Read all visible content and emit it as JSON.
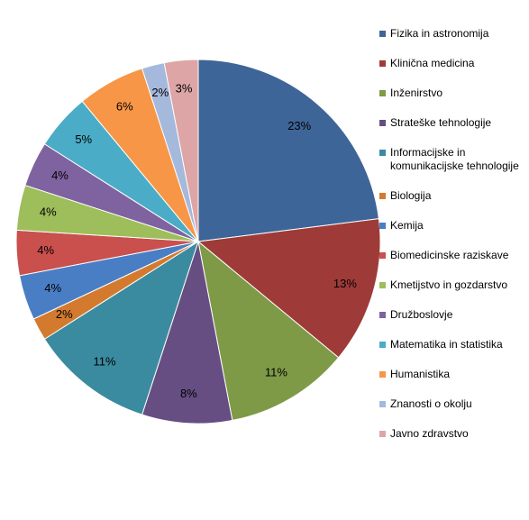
{
  "chart_data": {
    "type": "pie",
    "categories": [
      "Fizika in astronomija",
      "Klinična medicina",
      "Inženirstvo",
      "Strateške tehnologije",
      "Informacijske in komunikacijske tehnologije",
      "Biologija",
      "Kemija",
      "Biomedicinske raziskave",
      "Kmetijstvo in gozdarstvo",
      "Družboslovje",
      "Matematika in statistika",
      "Humanistika",
      "Znanosti o okolju",
      "Javno zdravstvo"
    ],
    "values": [
      23,
      13,
      11,
      8,
      11,
      2,
      4,
      4,
      4,
      4,
      5,
      6,
      2,
      3
    ],
    "value_labels": [
      "23%",
      "13%",
      "11%",
      "8%",
      "11%",
      "2%",
      "4%",
      "4%",
      "4%",
      "4%",
      "5%",
      "6%",
      "2%",
      "3%"
    ],
    "colors": [
      "#3E6597",
      "#9E3B38",
      "#7E9A47",
      "#664E83",
      "#3B8BA0",
      "#D37A2F",
      "#4A7EC4",
      "#C9504D",
      "#9DBE5B",
      "#7F62A0",
      "#4AACC6",
      "#F79646",
      "#A5B9DD",
      "#DDA5A5"
    ],
    "legend": "right"
  }
}
